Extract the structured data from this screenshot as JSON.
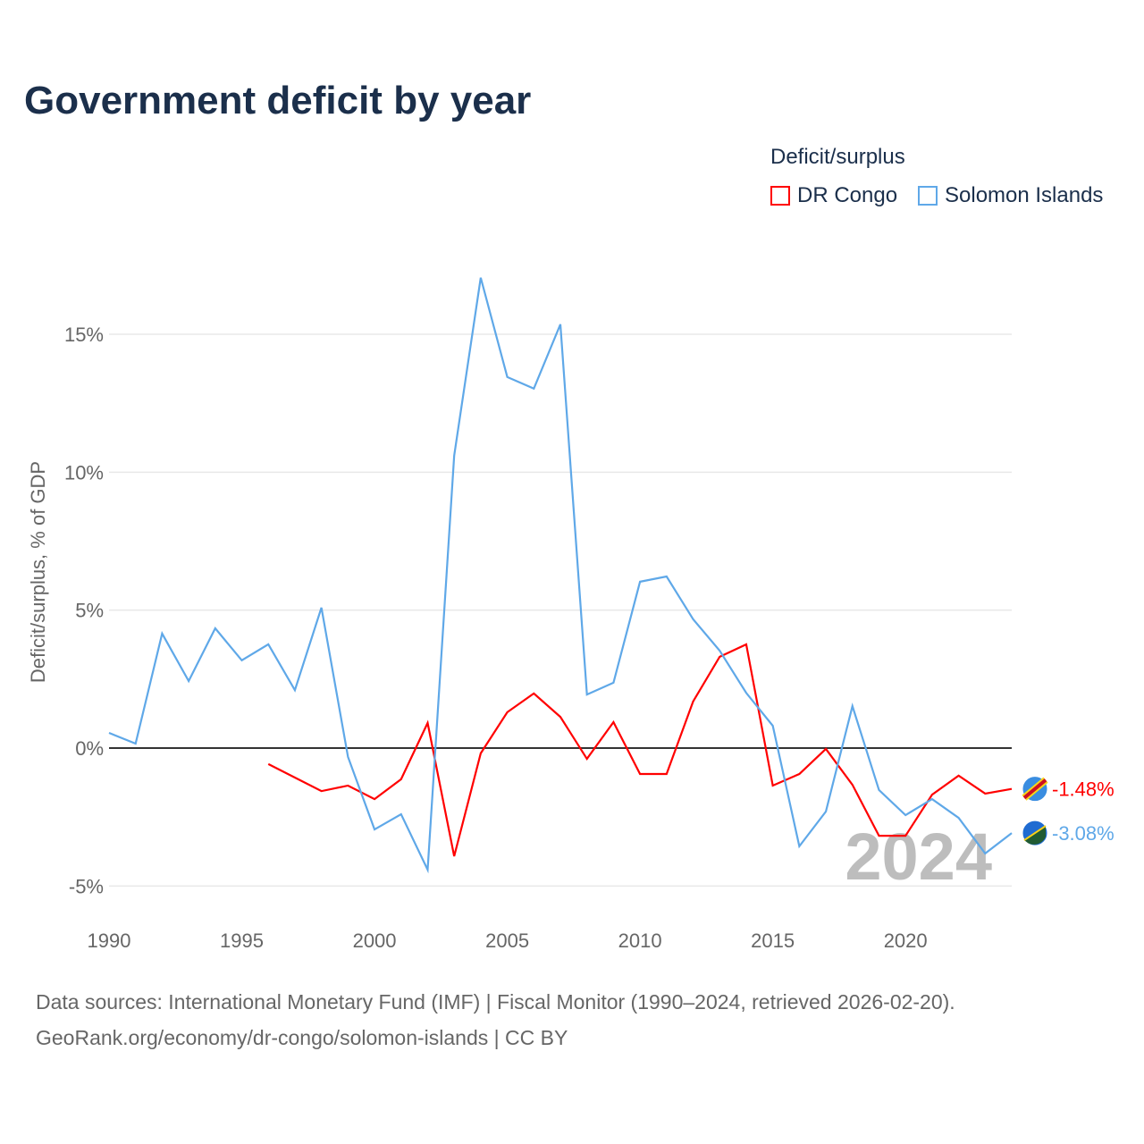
{
  "title": "Government deficit by year",
  "legend": {
    "title": "Deficit/surplus"
  },
  "source_line1": "Data sources: International Monetary Fund (IMF) | Fiscal Monitor (1990–2024, retrieved 2026-02-20).",
  "source_line2": "GeoRank.org/economy/dr-congo/solomon-islands | CC BY",
  "chart_data": {
    "type": "line",
    "title": "Government deficit by year",
    "xlabel": "",
    "ylabel": "Deficit/surplus, % of GDP",
    "xlim": [
      1990,
      2024
    ],
    "ylim": [
      -5,
      17
    ],
    "x_ticks": [
      1990,
      1995,
      2000,
      2005,
      2010,
      2015,
      2020
    ],
    "x_tick_labels": [
      "1990",
      "1995",
      "2000",
      "2005",
      "2010",
      "2015",
      "2020"
    ],
    "y_ticks": [
      -5,
      0,
      5,
      10,
      15
    ],
    "y_tick_labels": [
      "-5%",
      "0%",
      "5%",
      "10%",
      "15%"
    ],
    "watermark": "2024",
    "legend_placement": "top-right",
    "series": [
      {
        "name": "DR Congo",
        "color": "#ff0000",
        "end_label": "-1.48%",
        "x": [
          1996,
          1997,
          1998,
          1999,
          2000,
          2001,
          2002,
          2003,
          2004,
          2005,
          2006,
          2007,
          2008,
          2009,
          2010,
          2011,
          2012,
          2013,
          2014,
          2015,
          2016,
          2017,
          2018,
          2019,
          2020,
          2021,
          2022,
          2023,
          2024
        ],
        "values": [
          -0.58,
          -1.07,
          -1.56,
          -1.36,
          -1.85,
          -1.13,
          0.91,
          -3.92,
          -0.19,
          1.3,
          1.98,
          1.13,
          -0.39,
          0.94,
          -0.94,
          -0.94,
          1.69,
          3.31,
          3.76,
          -1.36,
          -0.94,
          -0.03,
          -1.33,
          -3.18,
          -3.18,
          -1.69,
          -1.0,
          -1.65,
          -1.48
        ]
      },
      {
        "name": "Solomon Islands",
        "color": "#5fa8e8",
        "end_label": "-3.08%",
        "x": [
          1990,
          1991,
          1992,
          1993,
          1994,
          1995,
          1996,
          1997,
          1998,
          1999,
          2000,
          2001,
          2002,
          2003,
          2004,
          2005,
          2006,
          2007,
          2008,
          2009,
          2010,
          2011,
          2012,
          2013,
          2014,
          2015,
          2016,
          2017,
          2018,
          2019,
          2020,
          2021,
          2022,
          2023,
          2024
        ],
        "values": [
          0.55,
          0.16,
          4.15,
          2.43,
          4.34,
          3.18,
          3.76,
          2.1,
          5.09,
          -0.32,
          -2.95,
          -2.4,
          -4.41,
          10.6,
          17.05,
          13.45,
          13.03,
          15.36,
          1.94,
          2.37,
          6.03,
          6.22,
          4.67,
          3.53,
          2.0,
          0.81,
          -3.56,
          -2.3,
          1.52,
          -1.52,
          -2.43,
          -1.85,
          -2.53,
          -3.82,
          -3.08
        ]
      }
    ]
  }
}
